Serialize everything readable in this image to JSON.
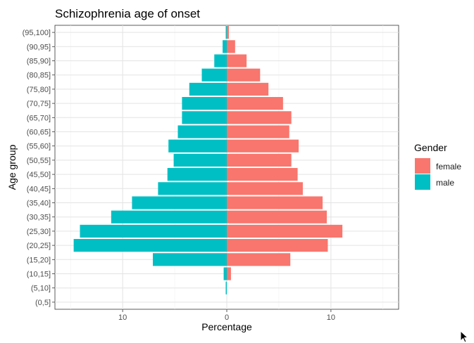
{
  "chart_data": {
    "type": "bar",
    "orientation": "horizontal",
    "title": "Schizophrenia age of onset",
    "xlabel": "Percentage",
    "ylabel": "Age group",
    "xlim": [
      -16.5,
      16.5
    ],
    "x_ticks": [
      -10,
      0,
      10
    ],
    "x_tick_labels": [
      "10",
      "0",
      "10"
    ],
    "grid": true,
    "legend_position": "right",
    "legend_title": "Gender",
    "categories": [
      "(0,5]",
      "(5,10]",
      "(10,15]",
      "(15,20]",
      "(20,25]",
      "(25,30]",
      "(30,35]",
      "(35,40]",
      "(40,45]",
      "(45,50]",
      "(50,55]",
      "(55,60]",
      "(60,65]",
      "(65,70]",
      "(70,75]",
      "(75,80]",
      "(80,85]",
      "(85,90]",
      "(90,95]",
      "(95,100]"
    ],
    "series": [
      {
        "name": "female",
        "color": "#F8766D",
        "values": [
          0,
          0,
          0.4,
          6.1,
          9.7,
          11.1,
          9.6,
          9.2,
          7.3,
          6.8,
          6.2,
          6.9,
          6.0,
          6.2,
          5.4,
          4.0,
          3.2,
          1.9,
          0.8,
          0.2
        ]
      },
      {
        "name": "male",
        "color": "#00BFC4",
        "values": [
          0,
          -0.1,
          -0.3,
          -7.1,
          -14.7,
          -14.1,
          -11.1,
          -9.1,
          -6.6,
          -5.7,
          -5.1,
          -5.6,
          -4.7,
          -4.3,
          -4.3,
          -3.6,
          -2.4,
          -1.2,
          -0.4,
          -0.1
        ]
      }
    ]
  }
}
